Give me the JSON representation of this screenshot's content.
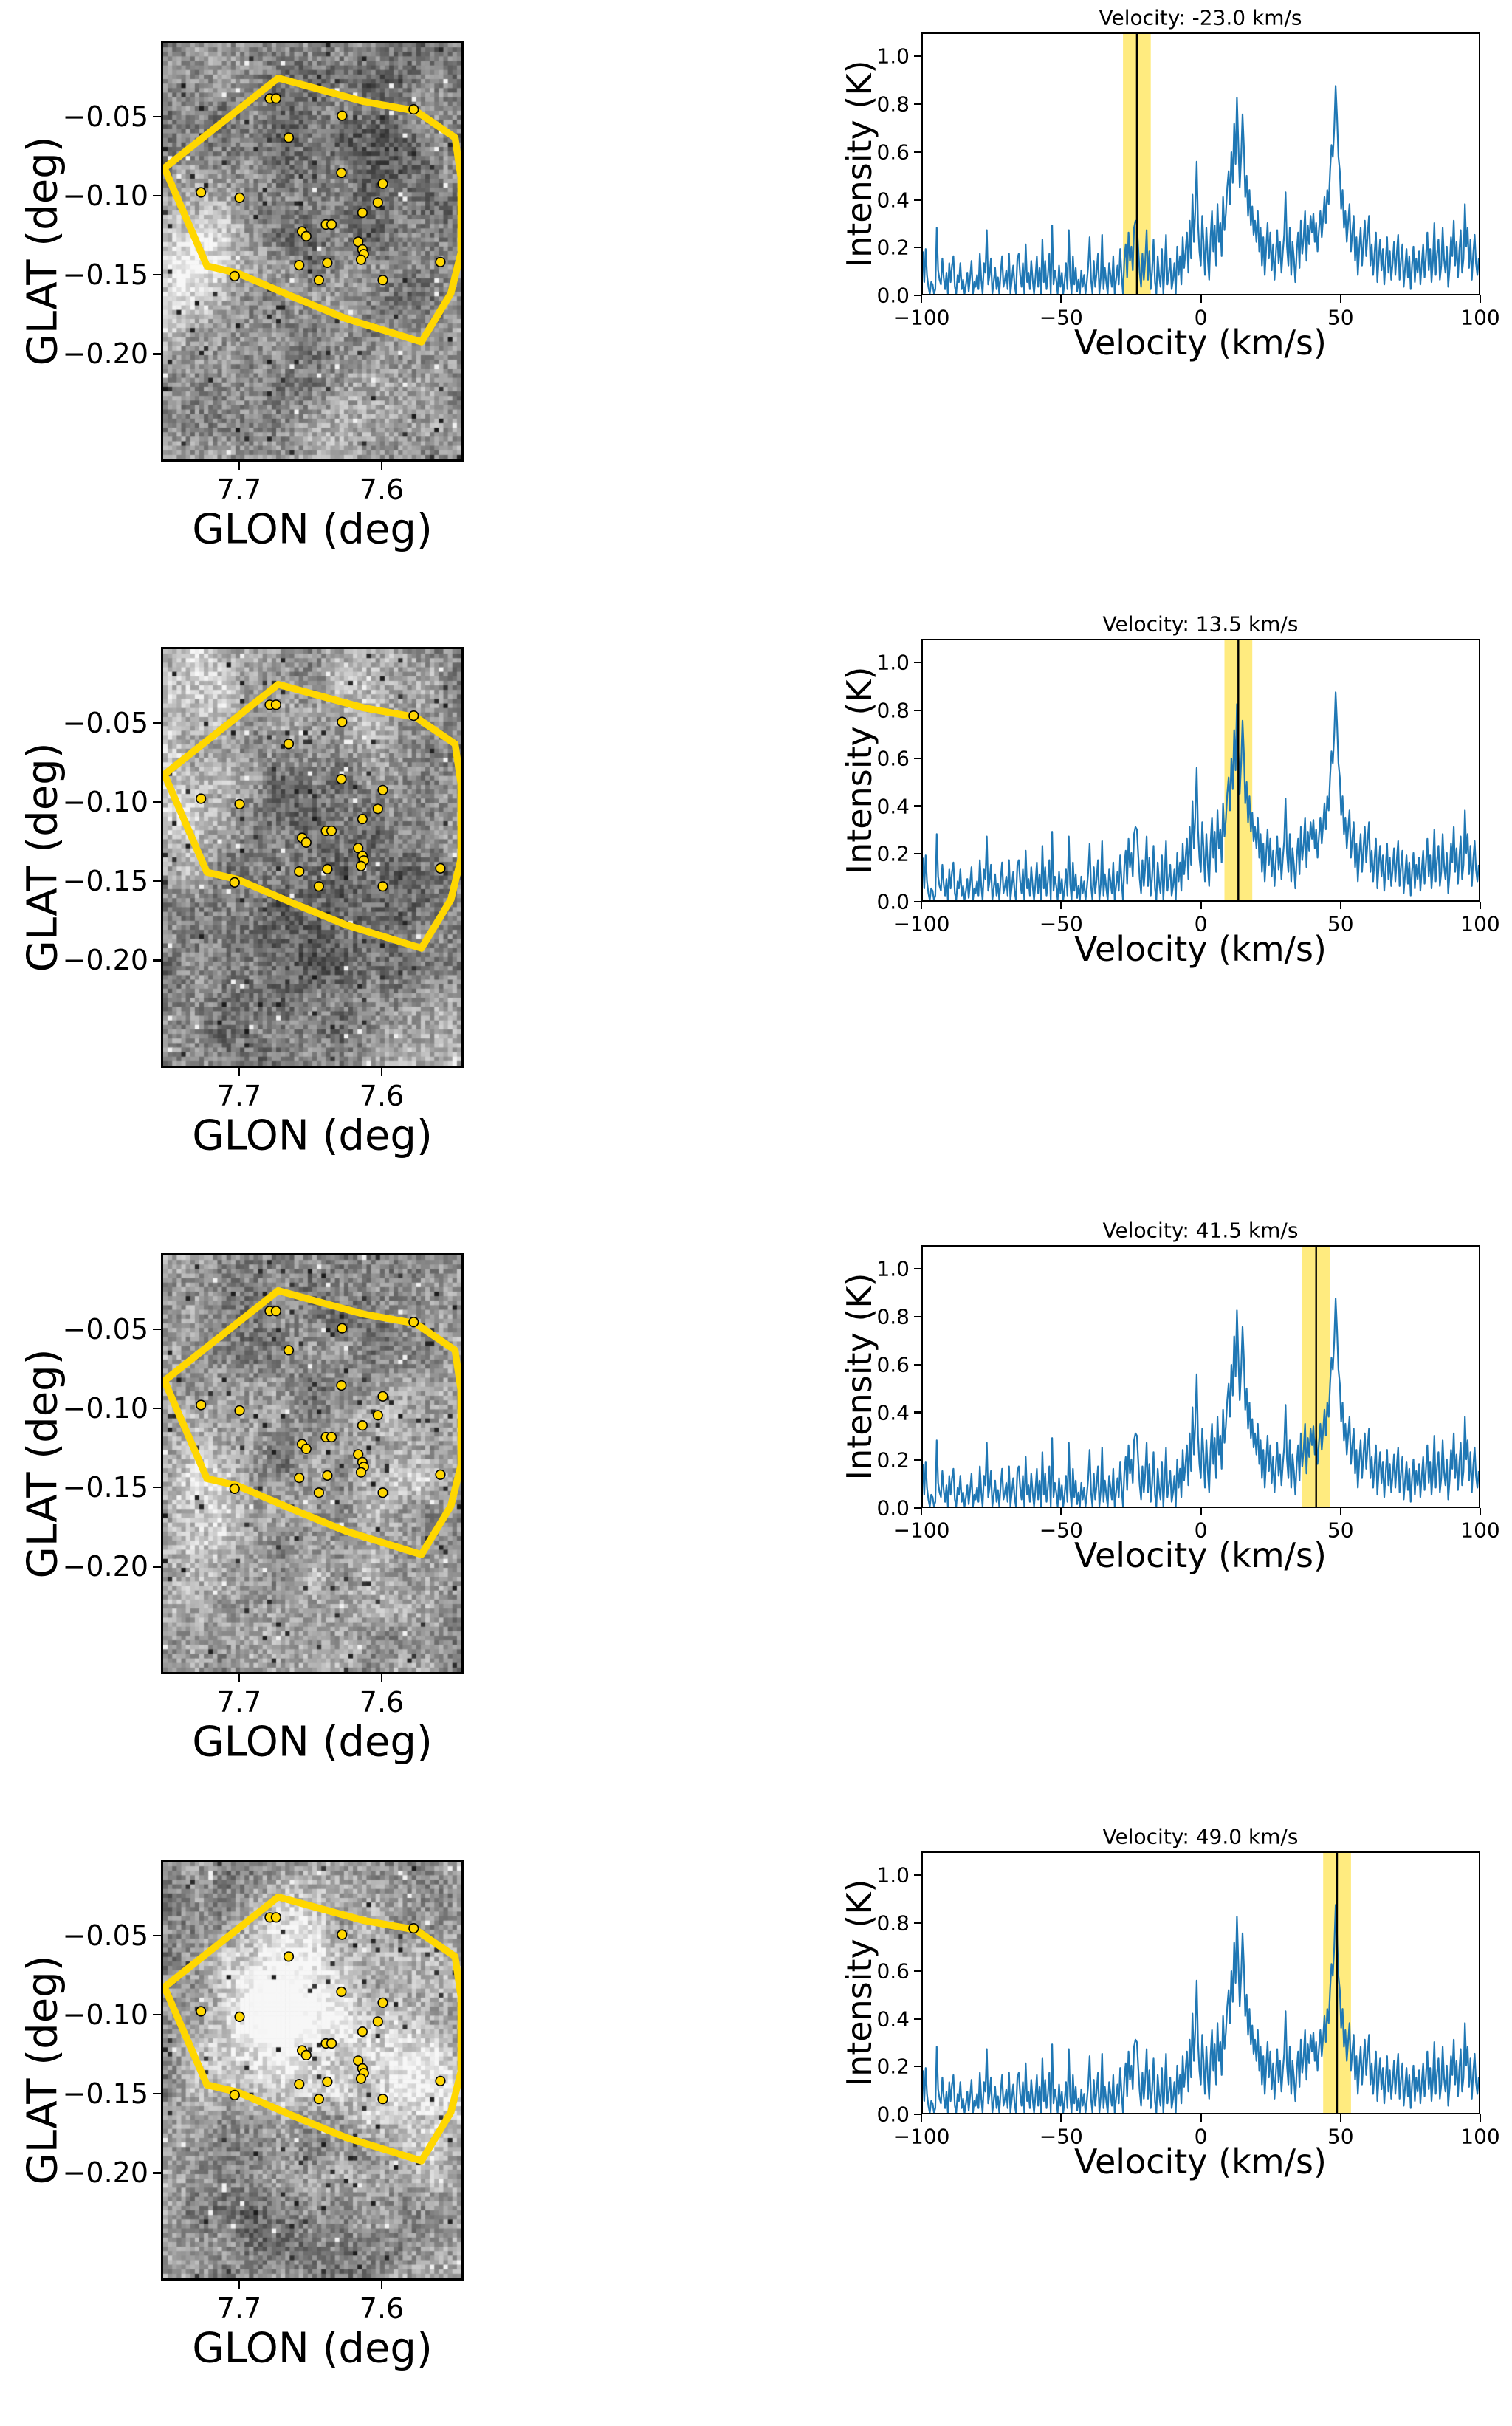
{
  "map_axes": {
    "xlabel": "GLON (deg)",
    "ylabel": "GLAT (deg)",
    "xlim": [
      7.7549,
      7.5425
    ],
    "ylim": [
      -0.268,
      -0.002
    ],
    "xticks": [
      {
        "value": 7.7,
        "label": "7.7"
      },
      {
        "value": 7.6,
        "label": "7.6"
      }
    ],
    "yticks": [
      {
        "value": -0.05,
        "label": "−0.05"
      },
      {
        "value": -0.1,
        "label": "−0.10"
      },
      {
        "value": -0.15,
        "label": "−0.15"
      },
      {
        "value": -0.2,
        "label": "−0.20"
      }
    ]
  },
  "spectrum_axes": {
    "xlabel": "Velocity (km/s)",
    "ylabel": "Intensity (K)",
    "xlim": [
      -100,
      100
    ],
    "ylim": [
      0,
      1.1
    ],
    "xticks": [
      {
        "value": -100,
        "label": "−100"
      },
      {
        "value": -50,
        "label": "−50"
      },
      {
        "value": 0,
        "label": "0"
      },
      {
        "value": 50,
        "label": "50"
      },
      {
        "value": 100,
        "label": "100"
      }
    ],
    "yticks": [
      {
        "value": 0.0,
        "label": "0.0"
      },
      {
        "value": 0.2,
        "label": "0.2"
      },
      {
        "value": 0.4,
        "label": "0.4"
      },
      {
        "value": 0.6,
        "label": "0.6"
      },
      {
        "value": 0.8,
        "label": "0.8"
      },
      {
        "value": 1.0,
        "label": "1.0"
      }
    ]
  },
  "rows": [
    {
      "title": "Velocity: -23.0 km/s"
    },
    {
      "title": "Velocity: 13.5 km/s"
    },
    {
      "title": "Velocity: 41.5 km/s"
    },
    {
      "title": "Velocity: 49.0 km/s"
    }
  ],
  "colors": {
    "spectrum_line": "#1f77b4",
    "highlight_band": "#ffd700",
    "highlight_band_opacity": 0.5,
    "marker_line": "#000000",
    "polygon": "#ffd700",
    "star_fill": "#ffd700",
    "star_edge": "#000000",
    "axis": "#000000"
  },
  "chart_data": [
    {
      "type": "heatmap",
      "role": "left-column grayscale channel maps with aperture polygon and point sources",
      "xlabel": "GLON (deg)",
      "ylabel": "GLAT (deg)",
      "xlim": [
        7.7549,
        7.5425
      ],
      "ylim": [
        -0.268,
        -0.002
      ],
      "xticks": [
        7.7,
        7.6
      ],
      "yticks": [
        -0.05,
        -0.1,
        -0.15,
        -0.2
      ],
      "grid": false,
      "panels": [
        {
          "velocity_kms": -23.0,
          "seed": 101,
          "bright_regions": [
            {
              "x": 0.05,
              "y": 0.57,
              "r": 0.1,
              "a": 0.3
            },
            {
              "x": 0.13,
              "y": 0.48,
              "r": 0.1,
              "a": 0.18
            },
            {
              "x": 0.85,
              "y": 0.3,
              "r": 0.22,
              "a": -0.1
            },
            {
              "x": 0.55,
              "y": 0.3,
              "r": 0.25,
              "a": -0.08
            }
          ]
        },
        {
          "velocity_kms": 13.5,
          "seed": 202,
          "bright_regions": [
            {
              "x": 0.15,
              "y": 0.08,
              "r": 0.16,
              "a": 0.22
            },
            {
              "x": 0.72,
              "y": 0.06,
              "r": 0.14,
              "a": 0.2
            },
            {
              "x": 0.03,
              "y": 0.42,
              "r": 0.12,
              "a": 0.16
            },
            {
              "x": 0.5,
              "y": 0.47,
              "r": 0.28,
              "a": -0.14
            },
            {
              "x": 0.4,
              "y": 0.75,
              "r": 0.26,
              "a": -0.07
            }
          ]
        },
        {
          "velocity_kms": 41.5,
          "seed": 303,
          "bright_regions": [
            {
              "x": 0.08,
              "y": 0.6,
              "r": 0.12,
              "a": 0.26
            },
            {
              "x": 0.78,
              "y": 0.48,
              "r": 0.14,
              "a": 0.16
            },
            {
              "x": 0.62,
              "y": 0.83,
              "r": 0.16,
              "a": 0.12
            },
            {
              "x": 0.45,
              "y": 0.28,
              "r": 0.25,
              "a": -0.08
            }
          ]
        },
        {
          "velocity_kms": 49.0,
          "seed": 404,
          "bright_regions": [
            {
              "x": 0.42,
              "y": 0.32,
              "r": 0.16,
              "a": 0.38
            },
            {
              "x": 0.3,
              "y": 0.45,
              "r": 0.14,
              "a": 0.2
            },
            {
              "x": 0.88,
              "y": 0.55,
              "r": 0.14,
              "a": 0.3
            },
            {
              "x": 0.65,
              "y": 0.5,
              "r": 0.18,
              "a": 0.12
            },
            {
              "x": 0.5,
              "y": 0.82,
              "r": 0.25,
              "a": -0.08
            },
            {
              "x": 0.12,
              "y": 0.1,
              "r": 0.2,
              "a": -0.06
            }
          ]
        }
      ],
      "aperture_polygon_glon_glat": [
        [
          7.673,
          -0.0245
        ],
        [
          7.612,
          -0.0395
        ],
        [
          7.575,
          -0.0455
        ],
        [
          7.547,
          -0.0625
        ],
        [
          7.5428,
          -0.088
        ],
        [
          7.5428,
          -0.136
        ],
        [
          7.55,
          -0.162
        ],
        [
          7.571,
          -0.193
        ],
        [
          7.625,
          -0.178
        ],
        [
          7.663,
          -0.164
        ],
        [
          7.702,
          -0.149
        ],
        [
          7.7237,
          -0.1445
        ],
        [
          7.754,
          -0.082
        ]
      ],
      "point_sources_glon_glat": [
        [
          7.679,
          -0.0375
        ],
        [
          7.6745,
          -0.0375
        ],
        [
          7.6275,
          -0.0485
        ],
        [
          7.5765,
          -0.0445
        ],
        [
          7.6655,
          -0.0625
        ],
        [
          7.628,
          -0.085
        ],
        [
          7.728,
          -0.0975
        ],
        [
          7.7005,
          -0.101
        ],
        [
          7.5985,
          -0.092
        ],
        [
          7.602,
          -0.104
        ],
        [
          7.613,
          -0.1105
        ],
        [
          7.639,
          -0.118
        ],
        [
          7.635,
          -0.118
        ],
        [
          7.656,
          -0.1225
        ],
        [
          7.653,
          -0.1255
        ],
        [
          7.616,
          -0.129
        ],
        [
          7.613,
          -0.134
        ],
        [
          7.612,
          -0.137
        ],
        [
          7.614,
          -0.1405
        ],
        [
          7.638,
          -0.1425
        ],
        [
          7.5575,
          -0.142
        ],
        [
          7.658,
          -0.144
        ],
        [
          7.704,
          -0.151
        ],
        [
          7.644,
          -0.1535
        ],
        [
          7.5985,
          -0.1535
        ]
      ]
    },
    {
      "type": "line",
      "role": "right-column intensity spectrum (same spectrum in all four rows, different highlighted velocity)",
      "xlabel": "Velocity (km/s)",
      "ylabel": "Intensity (K)",
      "xlim": [
        -100,
        100
      ],
      "ylim": [
        0,
        1.1
      ],
      "xticks": [
        -100,
        -50,
        0,
        50,
        100
      ],
      "yticks": [
        0.0,
        0.2,
        0.4,
        0.6,
        0.8,
        1.0
      ],
      "grid": false,
      "legend": null,
      "x_start": -100,
      "x_step": 0.5,
      "main_peaks": [
        {
          "velocity": -1.5,
          "intensity": 0.56
        },
        {
          "velocity": 13.0,
          "intensity": 0.83
        },
        {
          "velocity": 15.0,
          "intensity": 0.76
        },
        {
          "velocity": 30.5,
          "intensity": 0.43
        },
        {
          "velocity": 48.5,
          "intensity": 0.88
        },
        {
          "velocity": 95.0,
          "intensity": 0.38
        }
      ],
      "highlights": [
        {
          "center_kms": -23.0,
          "band_kms": [
            -28.0,
            -18.0
          ]
        },
        {
          "center_kms": 13.5,
          "band_kms": [
            8.5,
            18.5
          ]
        },
        {
          "center_kms": 41.5,
          "band_kms": [
            36.5,
            46.5
          ]
        },
        {
          "center_kms": 49.0,
          "band_kms": [
            44.0,
            54.0
          ]
        }
      ],
      "values": [
        0.18,
        0.05,
        0.19,
        0.08,
        0.03,
        0.0,
        0.05,
        0.04,
        0.0,
        0.02,
        0.28,
        0.1,
        0.06,
        0.04,
        0.15,
        0.07,
        0.02,
        0.09,
        0.0,
        0.13,
        0.05,
        0.12,
        0.16,
        0.03,
        0.0,
        0.08,
        0.05,
        0.13,
        0.02,
        0.06,
        0.0,
        0.04,
        0.09,
        0.01,
        0.07,
        0.14,
        0.0,
        0.05,
        0.03,
        0.08,
        0.02,
        0.17,
        0.06,
        0.0,
        0.13,
        0.09,
        0.27,
        0.04,
        0.08,
        0.15,
        0.0,
        0.05,
        0.11,
        0.02,
        0.07,
        0.0,
        0.09,
        0.16,
        0.03,
        0.06,
        0.1,
        0.02,
        0.17,
        0.0,
        0.06,
        0.12,
        0.04,
        0.0,
        0.15,
        0.17,
        0.08,
        0.03,
        0.13,
        0.0,
        0.21,
        0.05,
        0.09,
        0.02,
        0.14,
        0.06,
        0.0,
        0.07,
        0.16,
        0.03,
        0.11,
        0.0,
        0.23,
        0.05,
        0.14,
        0.02,
        0.08,
        0.17,
        0.0,
        0.29,
        0.04,
        0.1,
        0.06,
        0.0,
        0.12,
        0.03,
        0.09,
        0.0,
        0.05,
        0.13,
        0.02,
        0.27,
        0.07,
        0.0,
        0.16,
        0.04,
        0.11,
        0.01,
        0.06,
        0.0,
        0.1,
        0.03,
        0.08,
        0.0,
        0.05,
        0.12,
        0.24,
        0.06,
        0.0,
        0.14,
        0.03,
        0.09,
        0.17,
        0.0,
        0.07,
        0.25,
        0.02,
        0.11,
        0.05,
        0.0,
        0.13,
        0.08,
        0.03,
        0.16,
        0.0,
        0.06,
        0.12,
        0.04,
        0.19,
        0.08,
        0.0,
        0.15,
        0.21,
        0.07,
        0.26,
        0.14,
        0.2,
        0.1,
        0.28,
        0.31,
        0.3,
        0.19,
        0.09,
        0.03,
        0.17,
        0.06,
        0.14,
        0.27,
        0.06,
        0.18,
        0.02,
        0.1,
        0.23,
        0.05,
        0.0,
        0.16,
        0.08,
        0.03,
        0.19,
        0.0,
        0.12,
        0.25,
        0.04,
        0.09,
        0.15,
        0.02,
        0.06,
        0.13,
        0.0,
        0.2,
        0.08,
        0.16,
        0.04,
        0.24,
        0.11,
        0.18,
        0.26,
        0.09,
        0.31,
        0.15,
        0.42,
        0.22,
        0.35,
        0.56,
        0.3,
        0.18,
        0.12,
        0.33,
        0.21,
        0.08,
        0.28,
        0.15,
        0.06,
        0.24,
        0.35,
        0.18,
        0.29,
        0.12,
        0.38,
        0.22,
        0.3,
        0.16,
        0.41,
        0.27,
        0.34,
        0.45,
        0.52,
        0.38,
        0.6,
        0.47,
        0.72,
        0.55,
        0.83,
        0.64,
        0.45,
        0.58,
        0.76,
        0.62,
        0.41,
        0.5,
        0.33,
        0.44,
        0.29,
        0.37,
        0.25,
        0.31,
        0.22,
        0.35,
        0.18,
        0.28,
        0.12,
        0.24,
        0.08,
        0.19,
        0.3,
        0.15,
        0.26,
        0.1,
        0.21,
        0.06,
        0.17,
        0.27,
        0.13,
        0.22,
        0.09,
        0.18,
        0.25,
        0.43,
        0.2,
        0.12,
        0.28,
        0.08,
        0.22,
        0.15,
        0.05,
        0.18,
        0.26,
        0.11,
        0.31,
        0.17,
        0.24,
        0.35,
        0.14,
        0.29,
        0.21,
        0.33,
        0.26,
        0.34,
        0.22,
        0.3,
        0.18,
        0.27,
        0.35,
        0.24,
        0.32,
        0.41,
        0.3,
        0.44,
        0.38,
        0.52,
        0.63,
        0.58,
        0.7,
        0.88,
        0.75,
        0.58,
        0.52,
        0.36,
        0.44,
        0.28,
        0.35,
        0.22,
        0.3,
        0.38,
        0.18,
        0.26,
        0.33,
        0.14,
        0.24,
        0.08,
        0.19,
        0.28,
        0.12,
        0.22,
        0.31,
        0.16,
        0.25,
        0.33,
        0.12,
        0.21,
        0.08,
        0.17,
        0.26,
        0.05,
        0.15,
        0.23,
        0.1,
        0.19,
        0.04,
        0.14,
        0.24,
        0.09,
        0.18,
        0.06,
        0.13,
        0.22,
        0.08,
        0.17,
        0.25,
        0.06,
        0.14,
        0.21,
        0.03,
        0.11,
        0.19,
        0.07,
        0.16,
        0.02,
        0.12,
        0.2,
        0.05,
        0.15,
        0.09,
        0.18,
        0.04,
        0.13,
        0.21,
        0.07,
        0.16,
        0.26,
        0.1,
        0.19,
        0.05,
        0.14,
        0.3,
        0.08,
        0.17,
        0.23,
        0.06,
        0.12,
        0.28,
        0.15,
        0.09,
        0.2,
        0.03,
        0.11,
        0.24,
        0.16,
        0.31,
        0.12,
        0.22,
        0.07,
        0.18,
        0.27,
        0.09,
        0.15,
        0.38,
        0.2,
        0.28,
        0.11,
        0.23,
        0.06,
        0.17,
        0.25,
        0.13,
        0.08,
        0.15
      ]
    }
  ]
}
